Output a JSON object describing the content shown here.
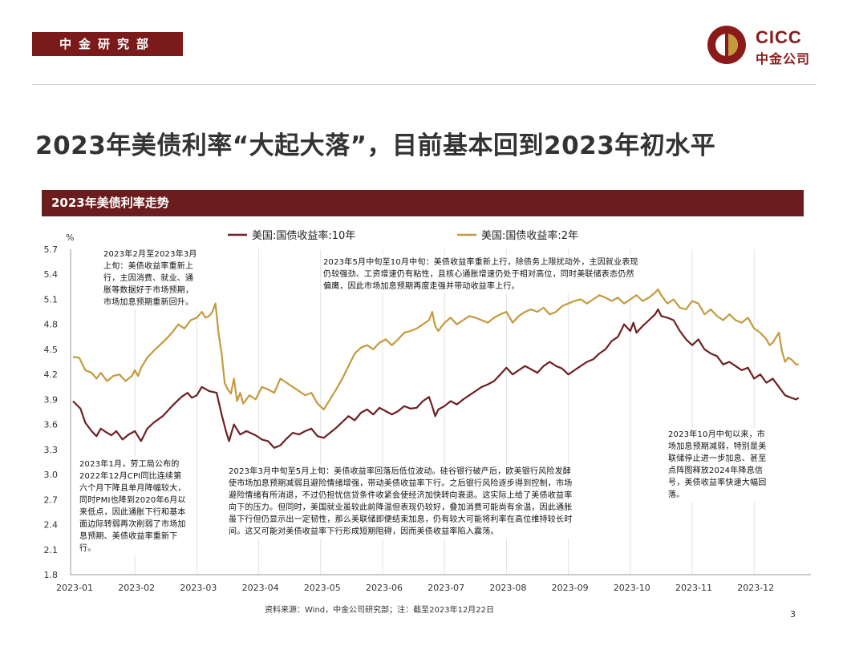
{
  "header": {
    "department": "中金研究部",
    "logo_en": "CICC",
    "logo_cn": "中金公司"
  },
  "page_title": "2023年美债利率“大起大落”，目前基本回到2023年初水平",
  "chart_header": "2023年美债利率走势",
  "colors": {
    "brand": "#7a1a1a",
    "header_bar": "#6b1d1d",
    "series_10y": "#6e1f22",
    "series_2y": "#c49a3d"
  },
  "chart_data": {
    "type": "line",
    "title": "2023年美债利率走势",
    "ylabel": "%",
    "xlabel": "",
    "ylim": [
      1.8,
      5.7
    ],
    "yticks": [
      "5.7",
      "5.4",
      "5.1",
      "4.8",
      "4.5",
      "4.2",
      "3.9",
      "3.6",
      "3.3",
      "3.0",
      "2.7",
      "2.4",
      "2.1",
      "1.8"
    ],
    "categories": [
      "2023-01",
      "2023-02",
      "2023-03",
      "2023-04",
      "2023-05",
      "2023-06",
      "2023-07",
      "2023-08",
      "2023-09",
      "2023-10",
      "2023-11",
      "2023-12"
    ],
    "grid": "vertical",
    "legend": "top",
    "series": [
      {
        "name": "美国:国债收益率:10年",
        "color": "#6e1f22",
        "points": [
          [
            0.0,
            3.88
          ],
          [
            0.12,
            3.79
          ],
          [
            0.2,
            3.62
          ],
          [
            0.3,
            3.52
          ],
          [
            0.38,
            3.46
          ],
          [
            0.45,
            3.55
          ],
          [
            0.55,
            3.5
          ],
          [
            0.62,
            3.47
          ],
          [
            0.7,
            3.52
          ],
          [
            0.8,
            3.42
          ],
          [
            0.9,
            3.48
          ],
          [
            1.0,
            3.52
          ],
          [
            1.1,
            3.4
          ],
          [
            1.2,
            3.55
          ],
          [
            1.3,
            3.62
          ],
          [
            1.45,
            3.7
          ],
          [
            1.6,
            3.82
          ],
          [
            1.75,
            3.93
          ],
          [
            1.85,
            3.98
          ],
          [
            1.92,
            3.92
          ],
          [
            2.0,
            3.95
          ],
          [
            2.08,
            4.05
          ],
          [
            2.2,
            4.0
          ],
          [
            2.32,
            3.98
          ],
          [
            2.4,
            3.72
          ],
          [
            2.47,
            3.52
          ],
          [
            2.52,
            3.4
          ],
          [
            2.6,
            3.6
          ],
          [
            2.7,
            3.48
          ],
          [
            2.8,
            3.52
          ],
          [
            2.95,
            3.47
          ],
          [
            3.05,
            3.42
          ],
          [
            3.15,
            3.4
          ],
          [
            3.25,
            3.32
          ],
          [
            3.35,
            3.35
          ],
          [
            3.45,
            3.43
          ],
          [
            3.55,
            3.5
          ],
          [
            3.65,
            3.48
          ],
          [
            3.75,
            3.52
          ],
          [
            3.85,
            3.55
          ],
          [
            3.95,
            3.46
          ],
          [
            4.05,
            3.44
          ],
          [
            4.15,
            3.5
          ],
          [
            4.25,
            3.56
          ],
          [
            4.35,
            3.63
          ],
          [
            4.45,
            3.7
          ],
          [
            4.55,
            3.65
          ],
          [
            4.65,
            3.74
          ],
          [
            4.75,
            3.78
          ],
          [
            4.85,
            3.72
          ],
          [
            4.95,
            3.8
          ],
          [
            5.05,
            3.76
          ],
          [
            5.15,
            3.72
          ],
          [
            5.25,
            3.76
          ],
          [
            5.35,
            3.82
          ],
          [
            5.45,
            3.79
          ],
          [
            5.55,
            3.8
          ],
          [
            5.65,
            3.88
          ],
          [
            5.75,
            3.93
          ],
          [
            5.8,
            3.82
          ],
          [
            5.85,
            3.7
          ],
          [
            5.9,
            3.78
          ],
          [
            6.0,
            3.82
          ],
          [
            6.1,
            3.88
          ],
          [
            6.2,
            3.84
          ],
          [
            6.3,
            3.9
          ],
          [
            6.4,
            3.95
          ],
          [
            6.5,
            4.0
          ],
          [
            6.6,
            4.05
          ],
          [
            6.7,
            4.08
          ],
          [
            6.8,
            4.12
          ],
          [
            6.9,
            4.2
          ],
          [
            7.0,
            4.28
          ],
          [
            7.1,
            4.2
          ],
          [
            7.2,
            4.25
          ],
          [
            7.3,
            4.3
          ],
          [
            7.4,
            4.26
          ],
          [
            7.5,
            4.22
          ],
          [
            7.6,
            4.3
          ],
          [
            7.7,
            4.35
          ],
          [
            7.8,
            4.3
          ],
          [
            7.9,
            4.27
          ],
          [
            8.0,
            4.2
          ],
          [
            8.1,
            4.25
          ],
          [
            8.2,
            4.3
          ],
          [
            8.3,
            4.35
          ],
          [
            8.4,
            4.38
          ],
          [
            8.5,
            4.45
          ],
          [
            8.6,
            4.5
          ],
          [
            8.7,
            4.6
          ],
          [
            8.8,
            4.65
          ],
          [
            8.9,
            4.8
          ],
          [
            9.0,
            4.72
          ],
          [
            9.05,
            4.82
          ],
          [
            9.1,
            4.7
          ],
          [
            9.2,
            4.78
          ],
          [
            9.3,
            4.85
          ],
          [
            9.4,
            4.92
          ],
          [
            9.45,
            4.98
          ],
          [
            9.5,
            4.9
          ],
          [
            9.6,
            4.88
          ],
          [
            9.7,
            4.85
          ],
          [
            9.8,
            4.72
          ],
          [
            9.9,
            4.62
          ],
          [
            10.0,
            4.55
          ],
          [
            10.1,
            4.62
          ],
          [
            10.2,
            4.5
          ],
          [
            10.3,
            4.45
          ],
          [
            10.4,
            4.42
          ],
          [
            10.5,
            4.32
          ],
          [
            10.6,
            4.35
          ],
          [
            10.7,
            4.3
          ],
          [
            10.8,
            4.25
          ],
          [
            10.9,
            4.28
          ],
          [
            11.0,
            4.15
          ],
          [
            11.1,
            4.2
          ],
          [
            11.2,
            4.1
          ],
          [
            11.3,
            4.15
          ],
          [
            11.4,
            4.05
          ],
          [
            11.5,
            3.95
          ],
          [
            11.6,
            3.92
          ],
          [
            11.68,
            3.9
          ],
          [
            11.72,
            3.92
          ]
        ]
      },
      {
        "name": "美国:国债收益率:2年",
        "color": "#c49a3d",
        "points": [
          [
            0.0,
            4.41
          ],
          [
            0.1,
            4.4
          ],
          [
            0.2,
            4.25
          ],
          [
            0.3,
            4.22
          ],
          [
            0.38,
            4.15
          ],
          [
            0.45,
            4.22
          ],
          [
            0.55,
            4.12
          ],
          [
            0.65,
            4.18
          ],
          [
            0.75,
            4.2
          ],
          [
            0.85,
            4.12
          ],
          [
            0.95,
            4.18
          ],
          [
            1.0,
            4.25
          ],
          [
            1.05,
            4.18
          ],
          [
            1.1,
            4.28
          ],
          [
            1.2,
            4.4
          ],
          [
            1.3,
            4.48
          ],
          [
            1.4,
            4.55
          ],
          [
            1.5,
            4.62
          ],
          [
            1.6,
            4.7
          ],
          [
            1.7,
            4.8
          ],
          [
            1.8,
            4.75
          ],
          [
            1.9,
            4.85
          ],
          [
            2.0,
            4.88
          ],
          [
            2.08,
            4.95
          ],
          [
            2.14,
            4.88
          ],
          [
            2.2,
            4.9
          ],
          [
            2.25,
            4.95
          ],
          [
            2.3,
            5.05
          ],
          [
            2.35,
            4.7
          ],
          [
            2.4,
            4.45
          ],
          [
            2.45,
            4.1
          ],
          [
            2.5,
            4.02
          ],
          [
            2.55,
            3.97
          ],
          [
            2.6,
            4.15
          ],
          [
            2.65,
            3.88
          ],
          [
            2.7,
            3.98
          ],
          [
            2.75,
            3.85
          ],
          [
            2.85,
            3.95
          ],
          [
            2.95,
            3.9
          ],
          [
            3.05,
            4.05
          ],
          [
            3.15,
            4.02
          ],
          [
            3.25,
            3.98
          ],
          [
            3.35,
            4.15
          ],
          [
            3.45,
            4.1
          ],
          [
            3.55,
            4.05
          ],
          [
            3.65,
            4.0
          ],
          [
            3.75,
            3.95
          ],
          [
            3.85,
            3.98
          ],
          [
            3.95,
            3.85
          ],
          [
            4.05,
            3.78
          ],
          [
            4.15,
            3.9
          ],
          [
            4.25,
            4.02
          ],
          [
            4.35,
            4.15
          ],
          [
            4.45,
            4.3
          ],
          [
            4.55,
            4.45
          ],
          [
            4.65,
            4.52
          ],
          [
            4.75,
            4.55
          ],
          [
            4.85,
            4.5
          ],
          [
            4.95,
            4.58
          ],
          [
            5.05,
            4.62
          ],
          [
            5.15,
            4.55
          ],
          [
            5.25,
            4.62
          ],
          [
            5.35,
            4.7
          ],
          [
            5.45,
            4.72
          ],
          [
            5.55,
            4.75
          ],
          [
            5.65,
            4.8
          ],
          [
            5.75,
            4.85
          ],
          [
            5.8,
            4.95
          ],
          [
            5.85,
            4.78
          ],
          [
            5.9,
            4.72
          ],
          [
            6.0,
            4.82
          ],
          [
            6.1,
            4.88
          ],
          [
            6.2,
            4.8
          ],
          [
            6.3,
            4.85
          ],
          [
            6.4,
            4.9
          ],
          [
            6.5,
            4.88
          ],
          [
            6.6,
            4.85
          ],
          [
            6.7,
            4.82
          ],
          [
            6.8,
            4.88
          ],
          [
            6.9,
            4.92
          ],
          [
            7.0,
            4.95
          ],
          [
            7.1,
            4.82
          ],
          [
            7.2,
            4.9
          ],
          [
            7.3,
            4.95
          ],
          [
            7.4,
            4.98
          ],
          [
            7.5,
            4.95
          ],
          [
            7.6,
            5.0
          ],
          [
            7.7,
            4.92
          ],
          [
            7.8,
            4.95
          ],
          [
            7.9,
            5.02
          ],
          [
            8.0,
            5.05
          ],
          [
            8.1,
            5.08
          ],
          [
            8.2,
            5.1
          ],
          [
            8.3,
            5.05
          ],
          [
            8.4,
            5.1
          ],
          [
            8.5,
            5.15
          ],
          [
            8.6,
            5.12
          ],
          [
            8.7,
            5.08
          ],
          [
            8.8,
            5.12
          ],
          [
            8.9,
            5.05
          ],
          [
            9.0,
            5.1
          ],
          [
            9.1,
            5.15
          ],
          [
            9.2,
            5.08
          ],
          [
            9.3,
            5.12
          ],
          [
            9.4,
            5.18
          ],
          [
            9.45,
            5.22
          ],
          [
            9.5,
            5.15
          ],
          [
            9.6,
            5.05
          ],
          [
            9.7,
            5.1
          ],
          [
            9.8,
            5.0
          ],
          [
            9.9,
            4.98
          ],
          [
            10.0,
            5.08
          ],
          [
            10.1,
            5.05
          ],
          [
            10.2,
            4.92
          ],
          [
            10.3,
            4.98
          ],
          [
            10.4,
            4.9
          ],
          [
            10.5,
            4.85
          ],
          [
            10.6,
            4.92
          ],
          [
            10.7,
            4.85
          ],
          [
            10.8,
            4.82
          ],
          [
            10.9,
            4.88
          ],
          [
            11.0,
            4.75
          ],
          [
            11.1,
            4.7
          ],
          [
            11.2,
            4.62
          ],
          [
            11.25,
            4.55
          ],
          [
            11.3,
            4.58
          ],
          [
            11.4,
            4.7
          ],
          [
            11.45,
            4.48
          ],
          [
            11.5,
            4.35
          ],
          [
            11.55,
            4.4
          ],
          [
            11.6,
            4.38
          ],
          [
            11.68,
            4.32
          ],
          [
            11.72,
            4.32
          ]
        ]
      }
    ]
  },
  "annotations": [
    "2023年2月至2023年3月上旬：美债收益率重新上行，主因消费、就业、通胀等数据好于市场预期，市场加息预期重新回升。",
    "2023年5月中旬至10月中旬：美债收益率重新上行，除债务上限扰动外，主因就业表现仍较强劲、工资增速仍有粘性，且核心通胀增速仍处于相对高位，同时美联储表态仍然偏鹰，因此市场加息预期再度走强并带动收益率上行。",
    "2023年1月，劳工局公布的2022年12月CPI同比连续第六个月下降且单月降幅较大，同时PMI也降到2020年6月以来低点，因此通胀下行和基本面边际转弱再次削弱了市场加息预期、美债收益率重新下行。",
    "2023年3月中旬至5月上旬：美债收益率回落后低位波动。硅谷银行破产后，欧美银行风险发酵使市场加息预期减弱且避险情绪增强，带动美债收益率下行。之后银行风险逐步得到控制，市场避险情绪有所消退，不过仍担忧信贷条件收紧会使经济加快转向衰退。这实际上给了美债收益率向下的压力。但同时，美国就业虽较此前降温但表现仍较好，叠加消费可能尚有余温，因此通胀虽下行但仍显示出一定韧性，那么美联储即便结束加息，仍有较大可能将利率在高位维持较长时间。这又可能对美债收益率下行形成短期阻碍，因而美债收益率陷入震荡。",
    "2023年10月中旬以来，市场加息预期减弱，特别是美联储停止进一步加息、甚至点阵图释放2024年降息信号，美债收益率快速大幅回落。"
  ],
  "source": "资料来源：Wind，中金公司研究部；注：截至2023年12月22日",
  "page_number": "3"
}
